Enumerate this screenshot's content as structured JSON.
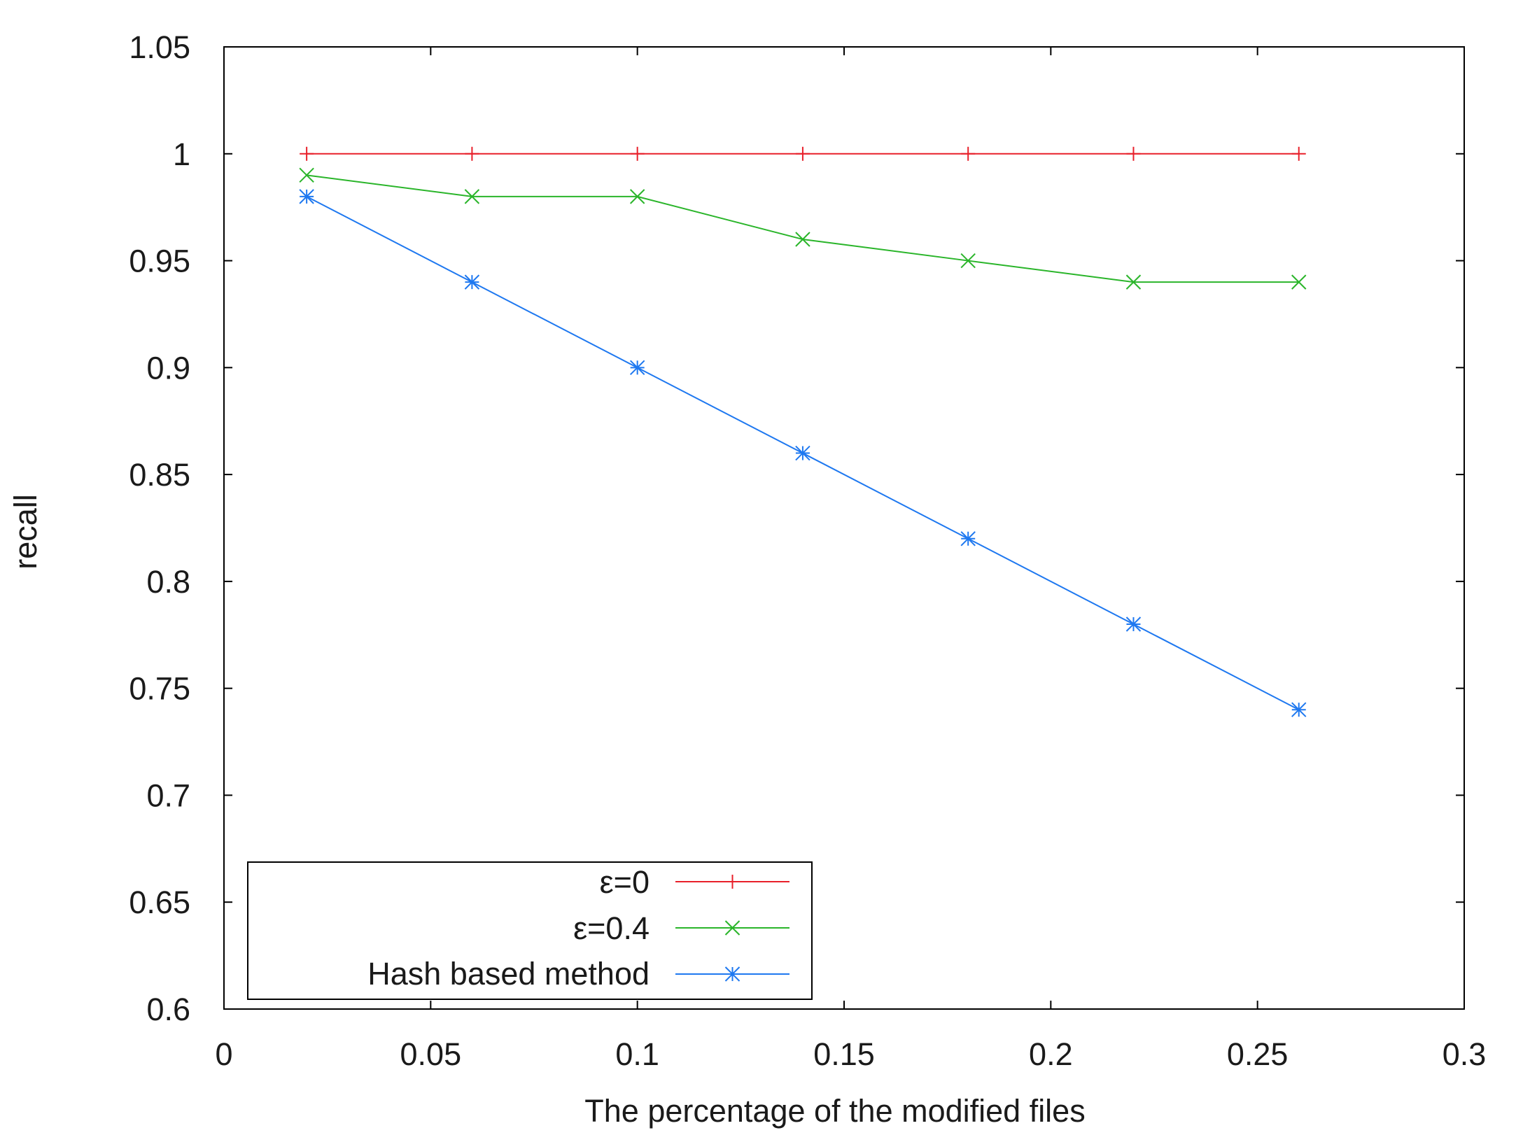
{
  "chart_data": {
    "type": "line",
    "title": "",
    "xlabel": "The percentage of the modified files",
    "ylabel": "recall",
    "xlim": [
      0,
      0.3
    ],
    "ylim": [
      0.6,
      1.05
    ],
    "x_ticks": [
      "0",
      "0.05",
      "0.1",
      "0.15",
      "0.2",
      "0.25",
      "0.3"
    ],
    "y_ticks": [
      "0.6",
      "0.65",
      "0.7",
      "0.75",
      "0.8",
      "0.85",
      "0.9",
      "0.95",
      "1",
      "1.05"
    ],
    "grid": false,
    "legend_position": "bottom-left",
    "x": [
      0.02,
      0.06,
      0.1,
      0.14,
      0.18,
      0.22,
      0.26
    ],
    "series": [
      {
        "name": "ε=0",
        "color": "#e8202a",
        "marker": "plus",
        "values": [
          1.0,
          1.0,
          1.0,
          1.0,
          1.0,
          1.0,
          1.0
        ]
      },
      {
        "name": "ε=0.4",
        "color": "#2ab52a",
        "marker": "cross",
        "values": [
          0.99,
          0.98,
          0.98,
          0.96,
          0.95,
          0.94,
          0.94
        ]
      },
      {
        "name": "Hash based method",
        "color": "#1e78f0",
        "marker": "star",
        "values": [
          0.98,
          0.94,
          0.9,
          0.86,
          0.82,
          0.78,
          0.74
        ]
      }
    ]
  }
}
